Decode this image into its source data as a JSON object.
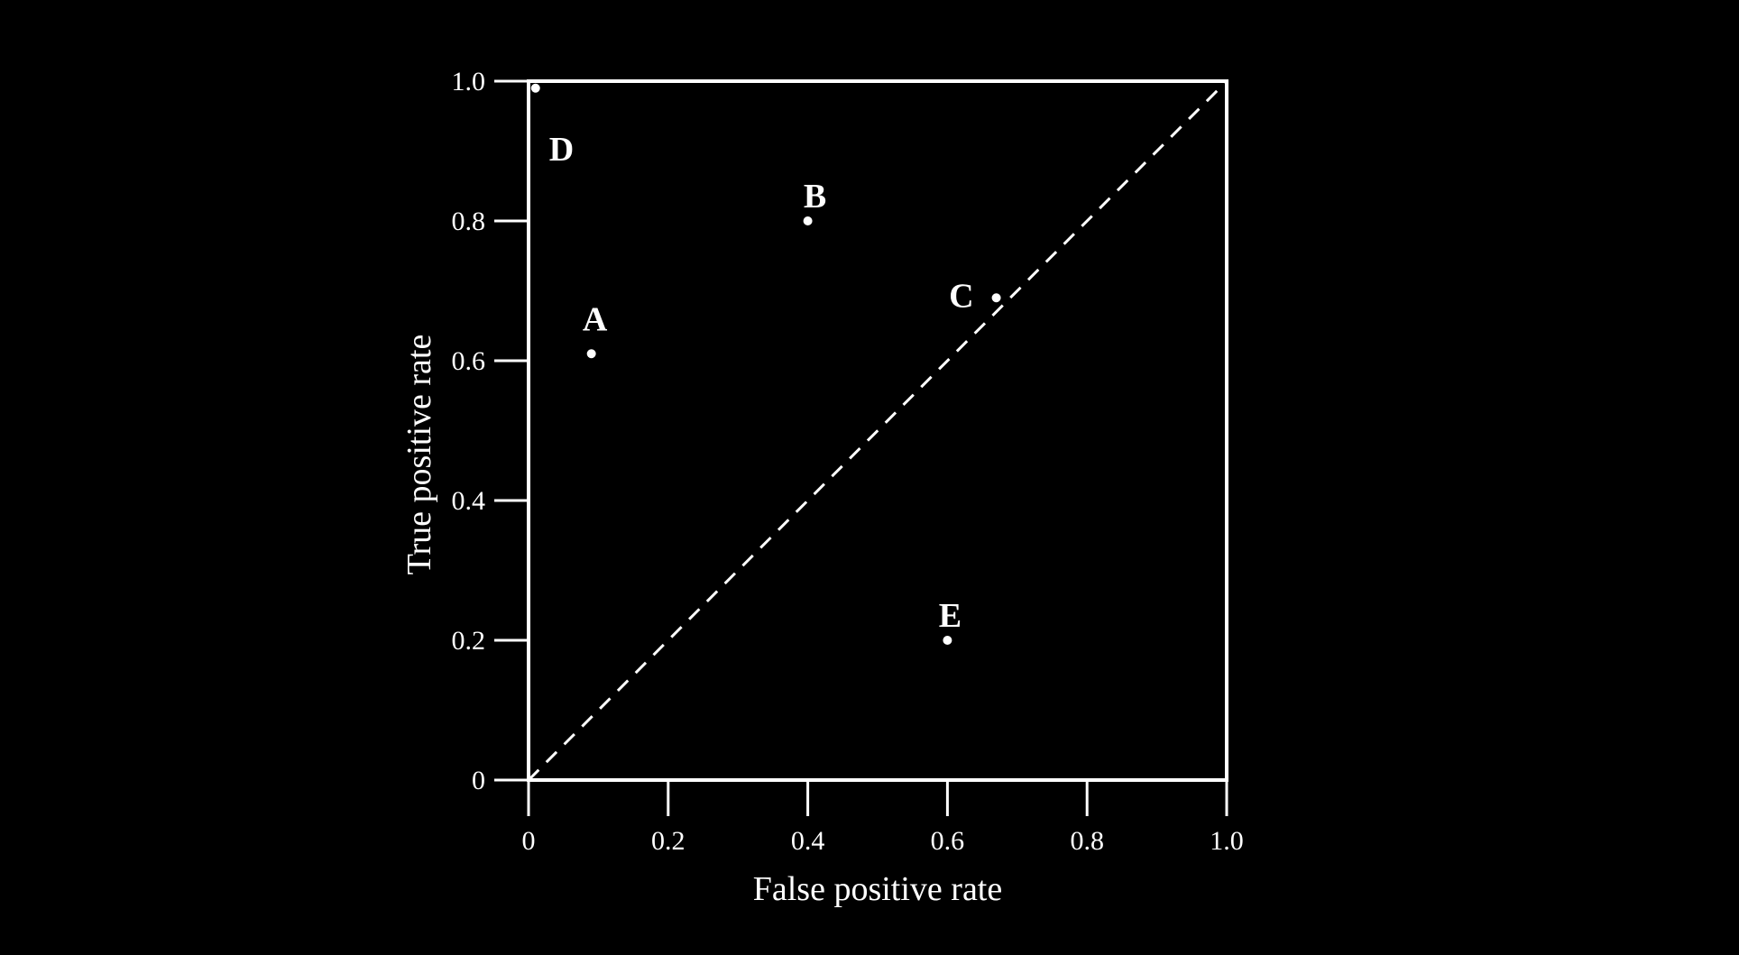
{
  "chart_data": {
    "type": "scatter",
    "title": "",
    "xlabel": "False positive rate",
    "ylabel": "True positive rate",
    "xlim": [
      0,
      1.0
    ],
    "ylim": [
      0,
      1.0
    ],
    "x_ticks": [
      0,
      0.2,
      0.4,
      0.6,
      0.8,
      1.0
    ],
    "y_ticks": [
      0,
      0.2,
      0.4,
      0.6,
      0.8,
      1.0
    ],
    "x_tick_labels": [
      "0",
      "0.2",
      "0.4",
      "0.6",
      "0.8",
      "1.0"
    ],
    "y_tick_labels": [
      "0",
      "0.2",
      "0.4",
      "0.6",
      "0.8",
      "1.0"
    ],
    "grid": false,
    "reference_line": {
      "style": "dashed",
      "from": [
        0,
        0
      ],
      "to": [
        1.0,
        1.0
      ]
    },
    "points": [
      {
        "label": "A",
        "x": 0.09,
        "y": 0.61
      },
      {
        "label": "B",
        "x": 0.4,
        "y": 0.8
      },
      {
        "label": "C",
        "x": 0.67,
        "y": 0.69
      },
      {
        "label": "D",
        "x": 0.01,
        "y": 0.99
      },
      {
        "label": "E",
        "x": 0.6,
        "y": 0.2
      }
    ],
    "colors": {
      "background": "#000000",
      "foreground": "#ffffff"
    }
  }
}
